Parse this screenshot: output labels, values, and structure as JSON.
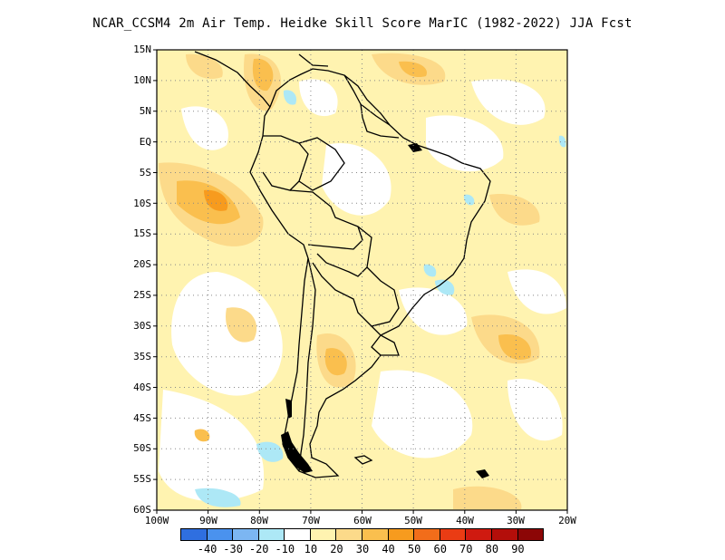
{
  "title": "NCAR_CCSM4  2m Air Temp. Heidke Skill Score MarIC (1982-2022) JJA Fcst",
  "map": {
    "lat_labels": [
      "15N",
      "10N",
      "5N",
      "EQ",
      "5S",
      "10S",
      "15S",
      "20S",
      "25S",
      "30S",
      "35S",
      "40S",
      "45S",
      "50S",
      "55S",
      "60S"
    ],
    "lon_labels": [
      "100W",
      "90W",
      "80W",
      "70W",
      "60W",
      "50W",
      "40W",
      "30W",
      "20W"
    ],
    "lon_range": [
      -100,
      -20
    ],
    "lat_range": [
      -60,
      15
    ],
    "grid": "dotted"
  },
  "colorbar": {
    "colors": [
      "#2f6fe0",
      "#4a92ee",
      "#7cb6f2",
      "#ade8f6",
      "#ffffff",
      "#fff3b0",
      "#fcda8a",
      "#fabf4e",
      "#f79b1e",
      "#f26d1a",
      "#ea3c14",
      "#cf1a10",
      "#b30e0a",
      "#8c0606"
    ],
    "labels": [
      "-40",
      "-30",
      "-20",
      "-10",
      "10",
      "20",
      "30",
      "40",
      "50",
      "60",
      "70",
      "80",
      "90"
    ]
  }
}
